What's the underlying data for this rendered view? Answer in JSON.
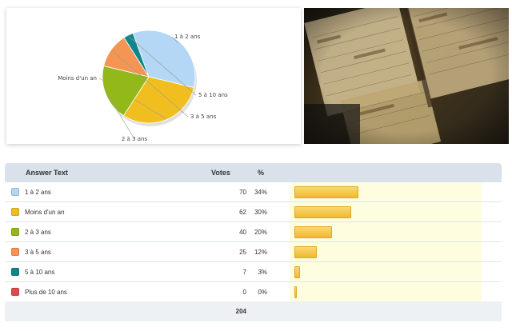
{
  "table": {
    "headers": {
      "answer": "Answer Text",
      "votes": "Votes",
      "percent": "%"
    },
    "rows": [
      {
        "label": "1 à 2 ans",
        "votes": "70",
        "percent": "34%",
        "value": 34,
        "color": "#b3d7f4"
      },
      {
        "label": "Moins d'un an",
        "votes": "62",
        "percent": "30%",
        "value": 30,
        "color": "#f1be20"
      },
      {
        "label": "2 à 3 ans",
        "votes": "40",
        "percent": "20%",
        "value": 20,
        "color": "#92b81a"
      },
      {
        "label": "3 à 5 ans",
        "votes": "25",
        "percent": "12%",
        "value": 12,
        "color": "#f59553"
      },
      {
        "label": "5 à 10 ans",
        "votes": "7",
        "percent": "3%",
        "value": 3,
        "color": "#10868c"
      },
      {
        "label": "Plus de 10 ans",
        "votes": "0",
        "percent": "0%",
        "value": 0,
        "color": "#d94c4c"
      }
    ],
    "total": "204"
  },
  "chart_data": {
    "type": "pie",
    "categories": [
      "1 à 2 ans",
      "Moins d'un an",
      "2 à 3 ans",
      "3 à 5 ans",
      "5 à 10 ans",
      "Plus de 10 ans"
    ],
    "values": [
      70,
      62,
      40,
      25,
      7,
      0
    ],
    "colors": [
      "#b3d7f4",
      "#f1be20",
      "#92b81a",
      "#f59553",
      "#10868c",
      "#d94c4c"
    ],
    "legend": "none"
  },
  "photo": {
    "icon": "calendar-planner-photo"
  }
}
